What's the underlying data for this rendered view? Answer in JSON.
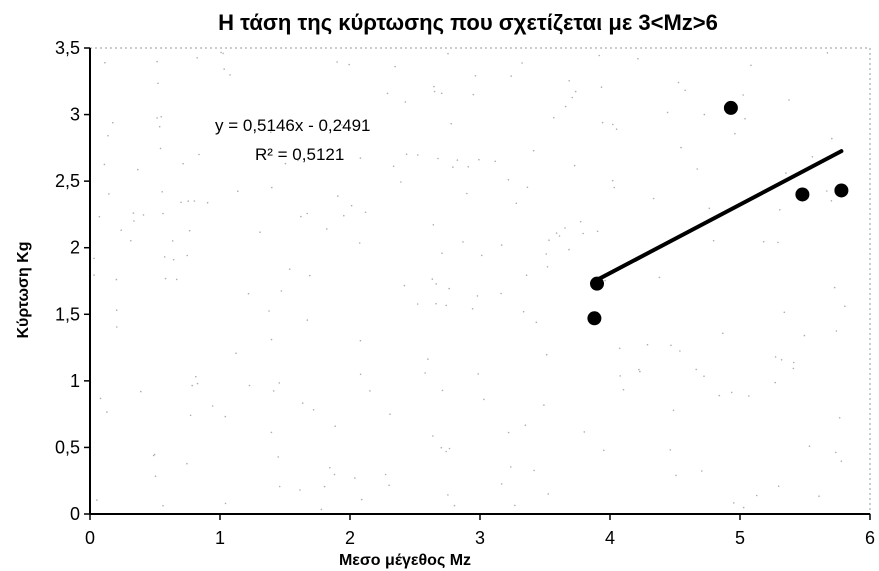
{
  "chart_data": {
    "type": "scatter",
    "title": "Η τάση της κύρτωσης που σχετίζεται με  3<Mz>6",
    "xlabel": "Μεσο μέγεθος Mz",
    "ylabel": "Κύρτωση Kg",
    "xlim": [
      0,
      6
    ],
    "ylim": [
      0,
      3.5
    ],
    "x_ticks": [
      "0",
      "1",
      "2",
      "3",
      "4",
      "5",
      "6"
    ],
    "y_ticks": [
      "0",
      "0,5",
      "1",
      "1,5",
      "2",
      "2,5",
      "3",
      "3,5"
    ],
    "grid": false,
    "legend": "none",
    "series": [
      {
        "points": [
          {
            "x": 3.88,
            "y": 1.47
          },
          {
            "x": 3.9,
            "y": 1.73
          },
          {
            "x": 4.93,
            "y": 3.05
          },
          {
            "x": 5.48,
            "y": 2.4
          },
          {
            "x": 5.78,
            "y": 2.43
          }
        ],
        "color": "#000000"
      }
    ],
    "trendline": {
      "slope": 0.5146,
      "intercept": -0.2491,
      "x_range": [
        3.9,
        5.78
      ],
      "equation_label": "y = 0,5146x - 0,2491",
      "r2_label": "R² = 0,5121",
      "color": "#000000"
    }
  }
}
